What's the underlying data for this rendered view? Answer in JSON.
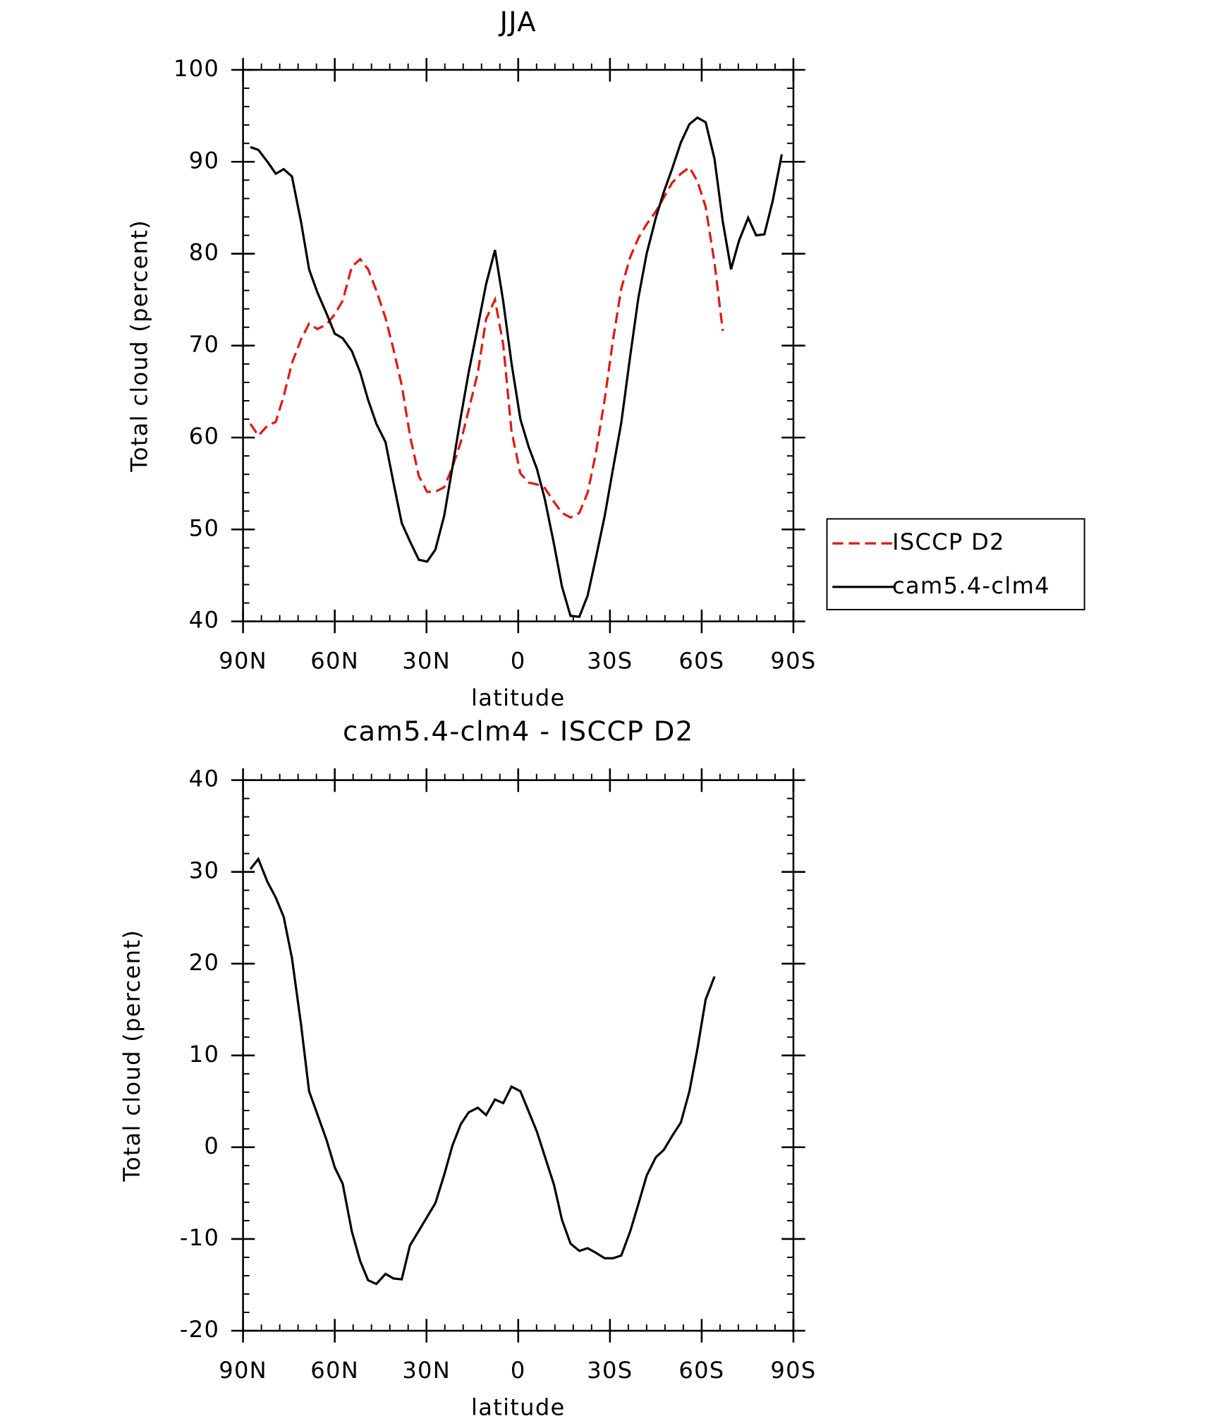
{
  "chart_data": [
    {
      "type": "line",
      "title": "JJA",
      "x_label": "latitude",
      "y_label": "Total cloud (percent)",
      "x": [
        87.6,
        85,
        82,
        79.3,
        76.7,
        74,
        71,
        68.4,
        65.7,
        62.7,
        60,
        57.4,
        54.4,
        51.7,
        49.1,
        46.4,
        43.4,
        40.8,
        38.1,
        35.4,
        32.5,
        29.8,
        27.1,
        24.2,
        21.5,
        18.8,
        16.2,
        13.2,
        10.5,
        7.6,
        4.9,
        2.2,
        -0.7,
        -3.4,
        -6.1,
        -8.7,
        -11.7,
        -14.3,
        -17.1,
        -20,
        -22.7,
        -25.4,
        -28.3,
        -31,
        -33.7,
        -36.6,
        -39.3,
        -42,
        -45,
        -47.6,
        -50.3,
        -53.2,
        -56,
        -58.6,
        -61.3,
        -64.2,
        -66.9,
        -69.6,
        -72.2,
        -75.2,
        -77.8,
        -80.5,
        -83.2,
        -86.2
      ],
      "series": [
        {
          "name": "ISCCP D2",
          "color": "#e8160c",
          "dashed": true,
          "values": [
            61.5,
            60.2,
            61.3,
            61.7,
            64.5,
            68.1,
            70.7,
            72.4,
            71.8,
            72.3,
            73.4,
            74.9,
            78.6,
            79.4,
            78.3,
            76.0,
            73.0,
            69.6,
            65.7,
            60.2,
            55.8,
            54.1,
            54.1,
            54.6,
            56.8,
            59.5,
            63.0,
            67.1,
            72.9,
            75.0,
            70.1,
            60.7,
            56.1,
            55.1,
            54.9,
            54.5,
            53.0,
            51.8,
            51.3,
            51.8,
            54.0,
            58.3,
            64.2,
            70.6,
            76.2,
            79.6,
            81.7,
            83.2,
            84.6,
            86.1,
            87.7,
            88.7,
            89.4,
            87.9,
            85.1,
            79.0,
            71.6,
            null,
            null,
            null,
            null,
            null,
            null,
            null
          ]
        },
        {
          "name": "cam5.4-clm4",
          "color": "#000000",
          "dashed": false,
          "values": [
            91.6,
            91.3,
            90.0,
            88.7,
            89.2,
            88.4,
            83.4,
            78.3,
            75.8,
            73.5,
            71.3,
            70.8,
            69.4,
            67.1,
            64.1,
            61.5,
            59.5,
            55.1,
            50.7,
            48.7,
            46.7,
            46.5,
            47.8,
            51.5,
            56.8,
            62.2,
            67.1,
            72.1,
            76.7,
            80.4,
            74.8,
            68.1,
            62.0,
            59.0,
            56.6,
            53.3,
            48.4,
            43.8,
            40.6,
            40.5,
            42.8,
            46.9,
            51.5,
            56.6,
            61.6,
            68.8,
            75.2,
            80.0,
            83.9,
            86.7,
            89.2,
            92.1,
            94.1,
            94.8,
            94.3,
            90.3,
            83.5,
            78.3,
            81.4,
            83.9,
            82.0,
            82.1,
            85.7,
            90.8
          ]
        }
      ],
      "xlim": [
        90,
        -90
      ],
      "xticks": [
        {
          "value": 90,
          "label": "90N"
        },
        {
          "value": 60,
          "label": "60N"
        },
        {
          "value": 30,
          "label": "30N"
        },
        0,
        {
          "value": -30,
          "label": "30S"
        },
        {
          "value": -60,
          "label": "60S"
        },
        {
          "value": -90,
          "label": "90S"
        }
      ],
      "ylim": [
        40,
        100
      ],
      "yticks": [
        40,
        50,
        60,
        70,
        80,
        90,
        100
      ],
      "legend": "right"
    },
    {
      "type": "line",
      "title": "cam5.4-clm4 - ISCCP D2",
      "x_label": "latitude",
      "y_label": "Total cloud (percent)",
      "x": [
        87.6,
        85,
        82,
        79.3,
        76.7,
        74,
        71,
        68.4,
        65.7,
        62.7,
        60,
        57.4,
        54.4,
        51.7,
        49.1,
        46.4,
        43.4,
        40.8,
        38.1,
        35.4,
        32.5,
        29.8,
        27.1,
        24.2,
        21.5,
        18.8,
        16.2,
        13.2,
        10.5,
        7.6,
        4.9,
        2.2,
        -0.7,
        -3.4,
        -6.1,
        -8.7,
        -11.7,
        -14.3,
        -17.1,
        -20,
        -22.7,
        -25.4,
        -28.3,
        -31,
        -33.7,
        -36.6,
        -39.3,
        -42,
        -45,
        -47.6,
        -50.3,
        -53.2,
        -56,
        -58.6,
        -61.3,
        -64.2
      ],
      "series": [
        {
          "color": "#000000",
          "dashed": false,
          "values": [
            30.3,
            31.4,
            28.9,
            27.2,
            25.1,
            20.6,
            13.3,
            6.1,
            3.6,
            0.8,
            -2.2,
            -4.0,
            -9.2,
            -12.4,
            -14.5,
            -14.9,
            -13.8,
            -14.3,
            -14.4,
            -10.7,
            -9.1,
            -7.6,
            -6.1,
            -3.0,
            0.2,
            2.5,
            3.8,
            4.3,
            3.5,
            5.2,
            4.8,
            6.6,
            6.1,
            3.9,
            1.7,
            -1.0,
            -4.1,
            -7.9,
            -10.5,
            -11.3,
            -11.0,
            -11.5,
            -12.1,
            -12.1,
            -11.8,
            -9.2,
            -6.2,
            -3.1,
            -1.1,
            -0.3,
            1.2,
            2.7,
            6.1,
            10.7,
            16.1,
            18.6
          ]
        }
      ],
      "xlim": [
        90,
        -90
      ],
      "xticks": [
        {
          "value": 90,
          "label": "90N"
        },
        {
          "value": 60,
          "label": "60N"
        },
        {
          "value": 30,
          "label": "30N"
        },
        0,
        {
          "value": -30,
          "label": "30S"
        },
        {
          "value": -60,
          "label": "60S"
        },
        {
          "value": -90,
          "label": "90S"
        }
      ],
      "ylim": [
        -20,
        40
      ],
      "yticks": [
        -20,
        -10,
        0,
        10,
        20,
        30,
        40
      ]
    }
  ]
}
